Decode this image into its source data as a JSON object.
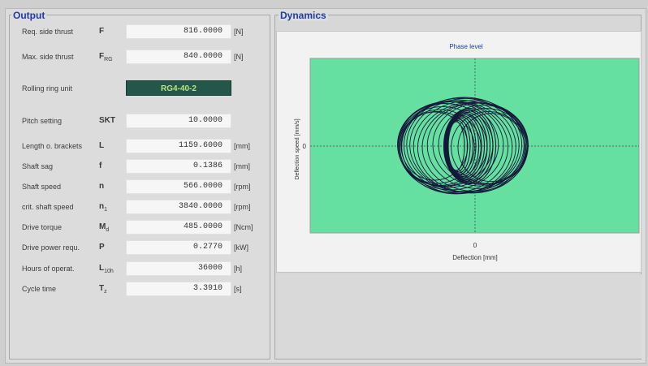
{
  "output": {
    "title": "Output",
    "rows": [
      {
        "label": "Req. side thrust",
        "symbol": "F",
        "sub": "",
        "value": "816.0000",
        "unit": "[N]"
      },
      {
        "label": "Max. side thrust",
        "symbol": "F",
        "sub": "RG",
        "value": "840.0000",
        "unit": "[N]"
      },
      {
        "label": "Pitch setting",
        "symbol": "SKT",
        "sub": "",
        "value": "10.0000",
        "unit": ""
      },
      {
        "label": "Length o. brackets",
        "symbol": "L",
        "sub": "",
        "value": "1159.6000",
        "unit": "[mm]"
      },
      {
        "label": "Shaft sag",
        "symbol": "f",
        "sub": "",
        "value": "0.1386",
        "unit": "[mm]"
      },
      {
        "label": "Shaft speed",
        "symbol": "n",
        "sub": "",
        "value": "566.0000",
        "unit": "[rpm]"
      },
      {
        "label": "crit. shaft speed",
        "symbol": "n",
        "sub": "1",
        "value": "3840.0000",
        "unit": "[rpm]"
      },
      {
        "label": "Drive torque",
        "symbol": "M",
        "sub": "d",
        "value": "485.0000",
        "unit": "[Ncm]"
      },
      {
        "label": "Drive power requ.",
        "symbol": "P",
        "sub": "",
        "value": "0.2770",
        "unit": "[kW]"
      },
      {
        "label": "Hours of operat.",
        "symbol": "L",
        "sub": "10h",
        "value": "36000",
        "unit": "[h]"
      },
      {
        "label": "Cycle time",
        "symbol": "T",
        "sub": "z",
        "value": "3.3910",
        "unit": "[s]"
      }
    ],
    "rolling_ring": {
      "label": "Rolling ring unit",
      "value": "RG4-40-2"
    }
  },
  "dynamics": {
    "title": "Dynamics",
    "chart_data": {
      "type": "line",
      "title": "Phase level",
      "xlabel": "Deflection [mm]",
      "ylabel": "Deflection speed [mm/s]",
      "x_ticks": [
        "0"
      ],
      "y_ticks": [
        "0"
      ],
      "grid": "dotted zero lines",
      "plot_background": "#66e0a0",
      "line_color": "#15183a"
    }
  },
  "colors": {
    "accent_title": "#1f3aa8",
    "rolling_ring_bg": "#24574a",
    "rolling_ring_text": "#b7e67a"
  }
}
